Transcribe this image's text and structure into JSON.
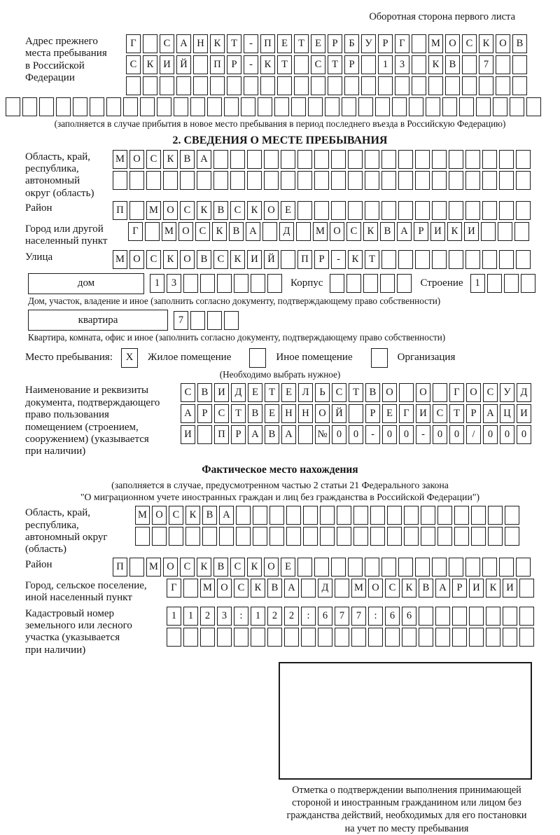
{
  "header": {
    "note": "Оборотная сторона первого листа"
  },
  "prev_address": {
    "label": "Адрес прежнего\nместа пребывания\nв Российской\nФедерации",
    "row1": {
      "t": "Г САНКТ-ПЕТЕРБУРГ МОСКОВ",
      "n": 24
    },
    "row2": {
      "t": "СКИЙ ПР-КТ СТР 13 КВ 7",
      "n": 24
    },
    "row3": {
      "t": "",
      "n": 24
    },
    "row4": {
      "t": "",
      "n": 32
    },
    "caption": "(заполняется в случае прибытия в новое место пребывания в период последнего въезда в Российскую Федерацию)"
  },
  "section2": {
    "title": "2. СВЕДЕНИЯ О МЕСТЕ ПРЕБЫВАНИЯ",
    "oblast": {
      "label": "Область, край,\nреспублика,\nавтономный\nокруг (область)",
      "row1": {
        "t": "МОСКВА",
        "n": 25
      },
      "row2": {
        "t": "",
        "n": 25
      }
    },
    "rayon": {
      "label": "Район",
      "row": {
        "t": "П МОСКВСКОЕ",
        "n": 25
      }
    },
    "gorod": {
      "label": "Город или другой\nнаселенный пункт",
      "row": {
        "t": "Г МОСКВА Д МОСКВАРИКИ",
        "n": 24
      }
    },
    "ulitsa": {
      "label": "Улица",
      "row": {
        "t": "МОСКОВСКИЙ ПР-КТ",
        "n": 25
      }
    },
    "dom": {
      "box_label": "дом",
      "digits": {
        "t": "13",
        "n": 8
      },
      "korpus_label": "Корпус",
      "korpus": {
        "t": "",
        "n": 5
      },
      "stroenie_label": "Строение",
      "stroenie": {
        "t": "1",
        "n": 4
      },
      "caption": "Дом, участок, владение и иное (заполнить согласно документу, подтверждающему право собственности)"
    },
    "kvartira": {
      "box_label": "квартира",
      "digits": {
        "t": "7",
        "n": 4
      },
      "caption": "Квартира, комната, офис и иное (заполнить согласно документу, подтверждающему право собственности)"
    },
    "mesto": {
      "label": "Место пребывания:",
      "opt1": {
        "mark": "X",
        "label": "Жилое помещение"
      },
      "opt2": {
        "mark": "",
        "label": "Иное помещение"
      },
      "opt3": {
        "mark": "",
        "label": "Организация"
      },
      "caption": "(Необходимо выбрать нужное)"
    },
    "doc": {
      "label": "Наименование и реквизиты\nдокумента, подтверждающего\nправо пользования\nпомещением (строением,\nсооружением) (указывается\nпри наличии)",
      "row1": {
        "t": "СВИДЕТЕЛЬСТВО О ГОСУД",
        "n": 21
      },
      "row2": {
        "t": "АРСТВЕННОЙ РЕГИСТРАЦИ",
        "n": 21
      },
      "row3": {
        "t": "И ПРАВА №00-00-00/000",
        "n": 21
      }
    }
  },
  "fact": {
    "title": "Фактическое место нахождения",
    "caption1": "(заполняется в случае, предусмотренном частью 2 статьи 21 Федерального закона",
    "caption2": "\"О миграционном учете иностранных граждан и лиц без гражданства в Российской Федерации\")",
    "oblast": {
      "label": "Область, край,\nреспублика,\nавтономный округ\n(область)",
      "row1": {
        "t": "МОСКВА",
        "n": 23
      },
      "row2": {
        "t": "",
        "n": 23
      }
    },
    "rayon": {
      "label": "Район",
      "row": {
        "t": "П МОСКВСКОЕ",
        "n": 25
      }
    },
    "gorod": {
      "label": "Город, сельское поселение,\nиной населенный пункт",
      "row": {
        "t": "Г МОСКВА Д МОСКВАРИКИ",
        "n": 22
      }
    },
    "kadastr": {
      "label": "Кадастровый номер\nземельного или лесного\nучастка (указывается\nпри наличии)",
      "row1": {
        "t": "1123:122:677:66",
        "n": 22
      },
      "row2": {
        "t": "",
        "n": 22
      }
    }
  },
  "stamp": {
    "caption": "Отметка о подтверждении выполнения принимающей\nстороной и иностранным гражданином или лицом без\nгражданства действий, необходимых для его постановки\nна учет по месту пребывания"
  }
}
